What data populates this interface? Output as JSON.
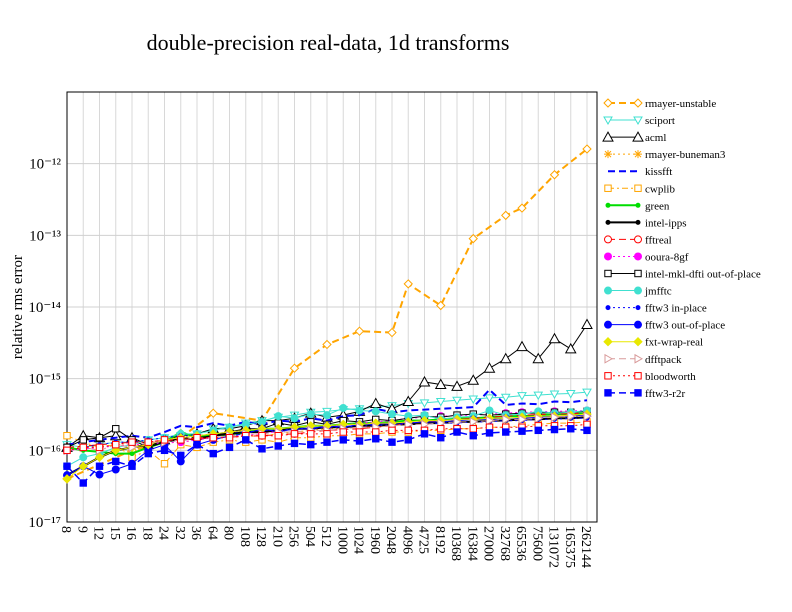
{
  "chart_data": {
    "type": "line",
    "title": "double-precision real-data, 1d transforms",
    "ylabel": "relative rms error",
    "categories": [
      8,
      9,
      12,
      15,
      16,
      18,
      24,
      32,
      36,
      64,
      80,
      108,
      128,
      210,
      256,
      504,
      512,
      1000,
      1024,
      1960,
      2048,
      4096,
      4725,
      8192,
      10368,
      16384,
      27000,
      32768,
      65536,
      75600,
      131072,
      165375,
      262144
    ],
    "log_y": true,
    "grid": true,
    "legend": "right",
    "ylim": [
      1e-17,
      1e-11
    ],
    "yticks": [
      {
        "value": 1e-17,
        "label": "10⁻¹⁷"
      },
      {
        "value": 1e-16,
        "label": "10⁻¹⁶"
      },
      {
        "value": 1e-15,
        "label": "10⁻¹⁵"
      },
      {
        "value": 1e-14,
        "label": "10⁻¹⁴"
      },
      {
        "value": 1e-13,
        "label": "10⁻¹³"
      },
      {
        "value": 1e-12,
        "label": "10⁻¹²"
      }
    ],
    "series": [
      {
        "name": "rmayer-unstable",
        "color": "#ffa500",
        "dash": "dashed",
        "width": 2,
        "marker": "diamond",
        "filled": false,
        "x": [
          8,
          16,
          32,
          64,
          128,
          256,
          512,
          1024,
          2048,
          4096,
          8192,
          16384,
          32768,
          65536,
          131072,
          262144
        ],
        "values": [
          4e-17,
          1e-16,
          1.5e-16,
          3.3e-16,
          2.6e-16,
          1.4e-15,
          3e-15,
          4.6e-15,
          4.4e-15,
          2.1e-14,
          1.05e-14,
          9e-14,
          1.9e-13,
          2.4e-13,
          7e-13,
          1.6e-12
        ]
      },
      {
        "name": "sciport",
        "color": "#40e0d0",
        "dash": "solid",
        "width": 1,
        "marker": "triangle-down",
        "filled": false,
        "values": [
          1.2e-16,
          1.1e-16,
          1.2e-16,
          1.3e-16,
          1.3e-16,
          1.4e-16,
          1.5e-16,
          1.6e-16,
          1.7e-16,
          2e-16,
          2.1e-16,
          2.4e-16,
          2.6e-16,
          2.9e-16,
          3.1e-16,
          3.4e-16,
          3.5e-16,
          3.7e-16,
          3.8e-16,
          4e-16,
          4.2e-16,
          4.5e-16,
          4.6e-16,
          4.8e-16,
          5e-16,
          5.2e-16,
          5.4e-16,
          5.5e-16,
          5.8e-16,
          5.9e-16,
          6.1e-16,
          6.2e-16,
          6.5e-16
        ]
      },
      {
        "name": "acml",
        "color": "#000000",
        "dash": "solid",
        "width": 1,
        "marker": "triangle-up",
        "filled": false,
        "values": [
          1.1e-16,
          1.6e-16,
          1.5e-16,
          1.6e-16,
          1.5e-16,
          1.2e-16,
          1.4e-16,
          1.6e-16,
          1.7e-16,
          2e-16,
          2e-16,
          2.2e-16,
          2.6e-16,
          2.6e-16,
          2.8e-16,
          3.3e-16,
          2.9e-16,
          3.1e-16,
          3.5e-16,
          4.5e-16,
          3.8e-16,
          4.8e-16,
          9e-16,
          8.3e-16,
          7.8e-16,
          9.5e-16,
          1.4e-15,
          1.9e-15,
          2.8e-15,
          1.9e-15,
          3.6e-15,
          2.6e-15,
          5.7e-15
        ]
      },
      {
        "name": "rmayer-buneman3",
        "color": "#ffa500",
        "dash": "dotted",
        "width": 1,
        "marker": "asterisk",
        "filled": false,
        "x": [
          8,
          16,
          32,
          64,
          128,
          256,
          512,
          1024,
          2048,
          4096,
          8192,
          16384,
          32768,
          65536,
          131072,
          262144
        ],
        "values": [
          1.1e-16,
          1.2e-16,
          1.3e-16,
          1.5e-16,
          1.6e-16,
          1.8e-16,
          2e-16,
          2.1e-16,
          2.2e-16,
          2.3e-16,
          2.4e-16,
          2.5e-16,
          2.6e-16,
          2.7e-16,
          2.8e-16,
          3e-16
        ]
      },
      {
        "name": "kissfft",
        "color": "#0000ff",
        "dash": "dashed",
        "width": 2,
        "marker": "none",
        "filled": false,
        "values": [
          1.2e-16,
          1.3e-16,
          1.4e-16,
          1.5e-16,
          1.6e-16,
          1.5e-16,
          1.8e-16,
          2.2e-16,
          2.1e-16,
          2.4e-16,
          2.2e-16,
          2.5e-16,
          2.3e-16,
          2.6e-16,
          2.5e-16,
          2.8e-16,
          2.6e-16,
          3e-16,
          3.1e-16,
          3.8e-16,
          3.4e-16,
          3.6e-16,
          3.7e-16,
          3.8e-16,
          3.9e-16,
          4e-16,
          7e-16,
          4.3e-16,
          4.5e-16,
          4.4e-16,
          4.8e-16,
          4.7e-16,
          5e-16
        ]
      },
      {
        "name": "cwplib",
        "color": "#ffa500",
        "dash": "dashdot",
        "width": 1,
        "marker": "square",
        "filled": false,
        "values": [
          1.6e-16,
          1.3e-16,
          1.1e-16,
          1.2e-16,
          8e-17,
          1e-16,
          6.5e-17,
          1.2e-16,
          1.1e-16,
          1.3e-16,
          1.4e-16,
          1.3e-16,
          1.4e-16,
          1.3e-16,
          1.5e-16,
          1.5e-16,
          1.6e-16,
          1.6e-16,
          1.7e-16,
          1.7e-16,
          1.8e-16,
          1.8e-16,
          1.9e-16,
          1.9e-16,
          2e-16,
          2e-16,
          2.1e-16,
          2.1e-16,
          2.2e-16,
          2.3e-16,
          2.4e-16,
          2.4e-16,
          2.5e-16
        ]
      },
      {
        "name": "green",
        "color": "#00dd00",
        "dash": "solid",
        "width": 2,
        "marker": "dot",
        "filled": true,
        "values": [
          1.1e-16,
          1e-16,
          9.5e-17,
          9e-17,
          9e-17,
          1.1e-16,
          1.3e-16,
          1.8e-16,
          1.5e-16,
          1.7e-16,
          1.6e-16,
          1.8e-16,
          2e-16,
          2e-16,
          2.1e-16,
          2.2e-16,
          2.2e-16,
          2.3e-16,
          2.4e-16,
          2.4e-16,
          2.5e-16,
          2.6e-16,
          2.6e-16,
          2.7e-16,
          2.8e-16,
          2.8e-16,
          2.9e-16,
          3e-16,
          3e-16,
          3.1e-16,
          3.2e-16,
          3.2e-16,
          3.3e-16
        ]
      },
      {
        "name": "intel-ipps",
        "color": "#000000",
        "dash": "solid",
        "width": 2,
        "marker": "dot",
        "filled": true,
        "values": [
          4.5e-17,
          6e-17,
          8e-17,
          1e-16,
          1.1e-16,
          1.2e-16,
          1.3e-16,
          1.5e-16,
          1.4e-16,
          1.6e-16,
          1.7e-16,
          1.8e-16,
          1.8e-16,
          1.9e-16,
          2e-16,
          2e-16,
          2.1e-16,
          2.1e-16,
          2.2e-16,
          2.2e-16,
          2.3e-16,
          2.3e-16,
          2.4e-16,
          2.4e-16,
          2.5e-16,
          2.5e-16,
          2.6e-16,
          2.6e-16,
          2.7e-16,
          2.7e-16,
          2.8e-16,
          2.8e-16,
          2.9e-16
        ]
      },
      {
        "name": "fftreal",
        "color": "#ff0000",
        "dash": "dashed",
        "width": 1,
        "marker": "circle",
        "filled": false,
        "x": [
          8,
          16,
          32,
          64,
          128,
          256,
          512,
          1024,
          2048,
          4096,
          8192,
          16384,
          32768,
          65536,
          131072,
          262144
        ],
        "values": [
          1.1e-16,
          1.3e-16,
          1.4e-16,
          1.5e-16,
          1.6e-16,
          1.7e-16,
          1.9e-16,
          2e-16,
          2.2e-16,
          2.4e-16,
          2.6e-16,
          2.8e-16,
          3e-16,
          3.1e-16,
          3.2e-16,
          3.3e-16
        ]
      },
      {
        "name": "ooura-8gf",
        "color": "#ff00ff",
        "dash": "dotted",
        "width": 1,
        "marker": "circle",
        "filled": true,
        "x": [
          8,
          16,
          32,
          64,
          128,
          256,
          512,
          1024,
          2048,
          4096,
          8192,
          16384,
          32768,
          65536,
          131072,
          262144
        ],
        "values": [
          1e-16,
          1.2e-16,
          1.3e-16,
          1.5e-16,
          1.7e-16,
          2e-16,
          2.1e-16,
          2.4e-16,
          2.6e-16,
          2.8e-16,
          3e-16,
          3.1e-16,
          3.3e-16,
          3.4e-16,
          3.5e-16,
          3.6e-16
        ]
      },
      {
        "name": "intel-mkl-dfti out-of-place",
        "color": "#000000",
        "dash": "solid",
        "width": 1,
        "marker": "square",
        "filled": false,
        "values": [
          1.1e-16,
          1.4e-16,
          1.5e-16,
          2e-16,
          1.4e-16,
          1.1e-16,
          1.3e-16,
          1.4e-16,
          1.5e-16,
          1.6e-16,
          1.8e-16,
          2e-16,
          2e-16,
          2.4e-16,
          2.2e-16,
          2.5e-16,
          2.3e-16,
          2.6e-16,
          2.5e-16,
          2.7e-16,
          2.6e-16,
          2.8e-16,
          3e-16,
          2.9e-16,
          3.1e-16,
          3.2e-16,
          3.1e-16,
          3.2e-16,
          3.3e-16,
          3.3e-16,
          3.4e-16,
          3.4e-16,
          3.5e-16
        ]
      },
      {
        "name": "jmfftc",
        "color": "#40e0d0",
        "dash": "solid",
        "width": 1,
        "marker": "circle",
        "filled": true,
        "values": [
          6e-17,
          8e-17,
          9e-17,
          1.1e-16,
          1.2e-16,
          1.4e-16,
          1.5e-16,
          1.7e-16,
          1.7e-16,
          1.9e-16,
          2.1e-16,
          2.3e-16,
          2.5e-16,
          3e-16,
          2.8e-16,
          3.2e-16,
          3.1e-16,
          3.9e-16,
          3.6e-16,
          3.5e-16,
          3.2e-16,
          3e-16,
          3.1e-16,
          2.7e-16,
          2.9e-16,
          3e-16,
          3.6e-16,
          3.1e-16,
          3.2e-16,
          3.5e-16,
          3.3e-16,
          3.4e-16,
          3.6e-16
        ]
      },
      {
        "name": "fftw3 in-place",
        "color": "#0000ff",
        "dash": "dotted",
        "width": 1,
        "marker": "dot",
        "filled": true,
        "values": [
          1e-16,
          1.1e-16,
          1.2e-16,
          1.3e-16,
          1.3e-16,
          1.4e-16,
          1.5e-16,
          1.6e-16,
          1.6e-16,
          1.7e-16,
          1.8e-16,
          1.8e-16,
          1.9e-16,
          1.9e-16,
          2e-16,
          2e-16,
          2.1e-16,
          2.1e-16,
          2.2e-16,
          2.2e-16,
          2.3e-16,
          2.3e-16,
          2.3e-16,
          2.4e-16,
          2.4e-16,
          2.5e-16,
          2.5e-16,
          2.6e-16,
          2.6e-16,
          2.7e-16,
          2.7e-16,
          2.8e-16,
          2.8e-16
        ]
      },
      {
        "name": "fftw3 out-of-place",
        "color": "#0000ff",
        "dash": "solid",
        "width": 1,
        "marker": "circle",
        "filled": true,
        "values": [
          4.5e-17,
          6e-17,
          4.6e-17,
          5.4e-17,
          6.5e-17,
          1e-16,
          1.2e-16,
          7e-17,
          1.2e-16,
          1.4e-16,
          1.6e-16,
          1.7e-16,
          2e-16,
          1.8e-16,
          2e-16,
          2e-16,
          2.2e-16,
          2.1e-16,
          2.3e-16,
          2.3e-16,
          2.4e-16,
          2.4e-16,
          2.5e-16,
          2.5e-16,
          2.6e-16,
          2.7e-16,
          2.7e-16,
          2.8e-16,
          2.8e-16,
          2.9e-16,
          3e-16,
          3e-16,
          3.1e-16
        ]
      },
      {
        "name": "fxt-wrap-real",
        "color": "#e8e800",
        "dash": "solid",
        "width": 1,
        "marker": "diamond",
        "filled": true,
        "values": [
          4e-17,
          6e-17,
          8e-17,
          1e-16,
          1.1e-16,
          1.2e-16,
          1.4e-16,
          1.5e-16,
          1.6e-16,
          1.7e-16,
          1.8e-16,
          1.9e-16,
          2e-16,
          2e-16,
          2.1e-16,
          2.2e-16,
          2.2e-16,
          2.3e-16,
          2.3e-16,
          2.4e-16,
          2.4e-16,
          2.5e-16,
          2.6e-16,
          2.6e-16,
          2.7e-16,
          2.7e-16,
          2.8e-16,
          2.8e-16,
          2.9e-16,
          3e-16,
          3e-16,
          3.1e-16,
          3.2e-16
        ]
      },
      {
        "name": "dfftpack",
        "color": "#d89a9a",
        "dash": "dashed",
        "width": 1,
        "marker": "triangle-right",
        "filled": false,
        "values": [
          1e-16,
          1.1e-16,
          1e-16,
          1.2e-16,
          1.1e-16,
          1.3e-16,
          1.3e-16,
          1.4e-16,
          1.5e-16,
          1.5e-16,
          1.6e-16,
          1.7e-16,
          1.7e-16,
          1.8e-16,
          1.8e-16,
          1.9e-16,
          1.9e-16,
          2e-16,
          2.1e-16,
          2.1e-16,
          2.2e-16,
          2.3e-16,
          2.3e-16,
          2.4e-16,
          2.5e-16,
          2.5e-16,
          2.6e-16,
          2.7e-16,
          2.7e-16,
          2.8e-16,
          2.9e-16,
          3e-16,
          3e-16
        ]
      },
      {
        "name": "bloodworth",
        "color": "#ff0000",
        "dash": "dotted",
        "width": 1,
        "marker": "square",
        "filled": false,
        "values": [
          1e-16,
          1.1e-16,
          1.1e-16,
          1.2e-16,
          1.3e-16,
          1.3e-16,
          1.4e-16,
          1.4e-16,
          1.5e-16,
          1.5e-16,
          1.5e-16,
          1.6e-16,
          1.6e-16,
          1.6e-16,
          1.7e-16,
          1.7e-16,
          1.7e-16,
          1.8e-16,
          1.8e-16,
          1.8e-16,
          1.9e-16,
          1.9e-16,
          1.9e-16,
          2e-16,
          2e-16,
          2e-16,
          2.1e-16,
          2.1e-16,
          2.1e-16,
          2.2e-16,
          2.2e-16,
          2.2e-16,
          2.3e-16
        ]
      },
      {
        "name": "fftw3-r2r",
        "color": "#0000ff",
        "dash": "dashed",
        "width": 1.5,
        "marker": "square",
        "filled": true,
        "values": [
          6e-17,
          3.5e-17,
          6e-17,
          7e-17,
          6e-17,
          9e-17,
          1e-16,
          8.5e-17,
          1.2e-16,
          9e-17,
          1.1e-16,
          1.4e-16,
          1.05e-16,
          1.15e-16,
          1.25e-16,
          1.2e-16,
          1.3e-16,
          1.4e-16,
          1.35e-16,
          1.45e-16,
          1.3e-16,
          1.4e-16,
          1.7e-16,
          1.5e-16,
          1.8e-16,
          1.6e-16,
          1.75e-16,
          1.8e-16,
          1.85e-16,
          1.9e-16,
          1.95e-16,
          2e-16,
          1.9e-16
        ]
      }
    ]
  }
}
